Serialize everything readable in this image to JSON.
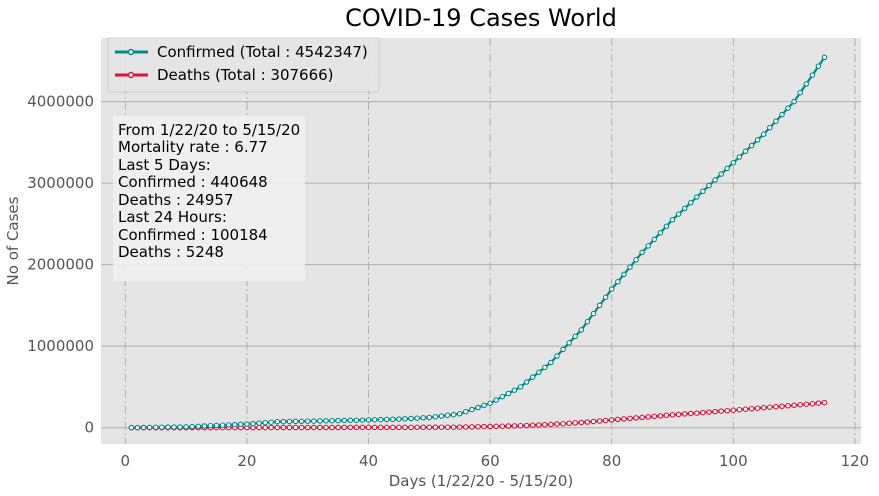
{
  "chart_data": {
    "type": "line",
    "title": "COVID-19 Cases World",
    "xlabel": "Days (1/22/20 - 5/15/20)",
    "ylabel": "No of Cases",
    "xlim": [
      -4,
      121
    ],
    "ylim": [
      -200000,
      4780000
    ],
    "xticks": [
      0,
      20,
      40,
      60,
      80,
      100,
      120
    ],
    "yticks": [
      0,
      1000000,
      2000000,
      3000000,
      4000000
    ],
    "grid": true,
    "legend_position": "top-left",
    "colors": {
      "confirmed": "#008b8b",
      "deaths": "#dc143c",
      "background": "#e5e5e5",
      "grid": "#b0b0b0"
    },
    "series": [
      {
        "name": "Confirmed (Total : 4542347)",
        "key": "confirmed",
        "x_start": 1,
        "x_step": 1,
        "anchors": [
          [
            1,
            555
          ],
          [
            10,
            9900
          ],
          [
            20,
            45000
          ],
          [
            25,
            73000
          ],
          [
            30,
            80000
          ],
          [
            40,
            95000
          ],
          [
            45,
            105000
          ],
          [
            50,
            125000
          ],
          [
            55,
            170000
          ],
          [
            60,
            300000
          ],
          [
            65,
            500000
          ],
          [
            70,
            800000
          ],
          [
            75,
            1200000
          ],
          [
            80,
            1700000
          ],
          [
            85,
            2150000
          ],
          [
            90,
            2550000
          ],
          [
            95,
            2900000
          ],
          [
            100,
            3250000
          ],
          [
            105,
            3600000
          ],
          [
            110,
            4000000
          ],
          [
            115,
            4542347
          ]
        ]
      },
      {
        "name": "Deaths (Total : 307666)",
        "key": "deaths",
        "x_start": 1,
        "x_step": 1,
        "anchors": [
          [
            1,
            17
          ],
          [
            10,
            200
          ],
          [
            20,
            1000
          ],
          [
            30,
            2500
          ],
          [
            40,
            3500
          ],
          [
            50,
            4500
          ],
          [
            55,
            7000
          ],
          [
            60,
            15000
          ],
          [
            65,
            24000
          ],
          [
            70,
            40000
          ],
          [
            75,
            64000
          ],
          [
            80,
            95000
          ],
          [
            85,
            126000
          ],
          [
            90,
            158000
          ],
          [
            95,
            185000
          ],
          [
            100,
            215000
          ],
          [
            105,
            245000
          ],
          [
            110,
            275000
          ],
          [
            115,
            307666
          ]
        ]
      }
    ],
    "annotation": {
      "lines": [
        "From 1/22/20 to 5/15/20",
        "Mortality rate : 6.77",
        "Last 5 Days:",
        "Confirmed : 440648",
        "Deaths : 24957",
        "Last 24 Hours:",
        "Confirmed : 100184",
        "Deaths : 5248"
      ]
    }
  }
}
